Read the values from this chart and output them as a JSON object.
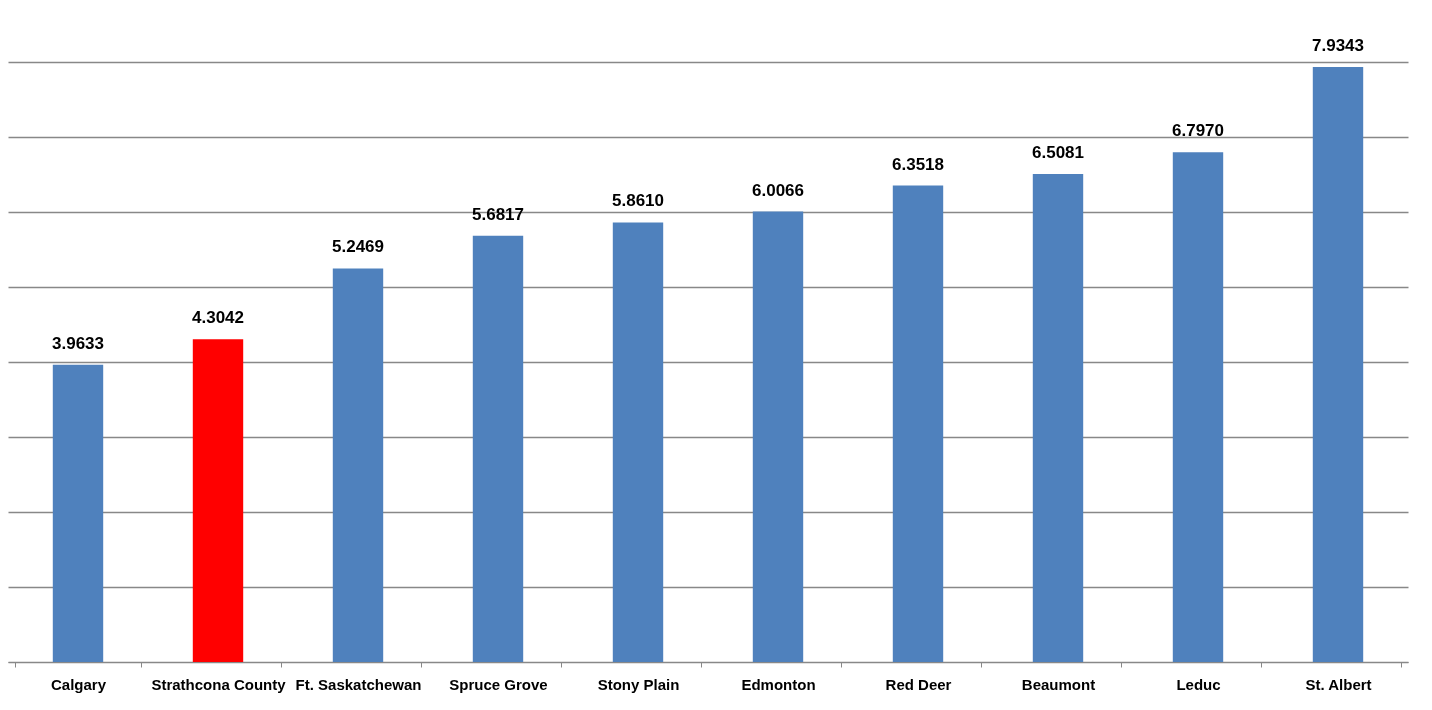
{
  "chart_data": {
    "type": "bar",
    "categories": [
      "Calgary",
      "Strathcona County",
      "Ft. Saskatchewan",
      "Spruce Grove",
      "Stony Plain",
      "Edmonton",
      "Red Deer",
      "Beaumont",
      "Leduc",
      "St. Albert"
    ],
    "values": [
      3.9633,
      4.3042,
      5.2469,
      5.6817,
      5.861,
      6.0066,
      6.3518,
      6.5081,
      6.797,
      7.9343
    ],
    "value_labels": [
      "3.9633",
      "4.3042",
      "5.2469",
      "5.6817",
      "5.8610",
      "6.0066",
      "6.3518",
      "6.5081",
      "6.7970",
      "7.9343"
    ],
    "colors": [
      "#4f81bd",
      "#ff0000",
      "#4f81bd",
      "#4f81bd",
      "#4f81bd",
      "#4f81bd",
      "#4f81bd",
      "#4f81bd",
      "#4f81bd",
      "#4f81bd"
    ],
    "ylim": [
      0,
      8
    ],
    "yticks": [
      {
        "value": 0,
        "label": null
      },
      {
        "value": 1,
        "label": null
      },
      {
        "value": 2,
        "label": null
      },
      {
        "value": 3,
        "label": null
      },
      {
        "value": 4,
        "label": null
      },
      {
        "value": 5,
        "label": null
      },
      {
        "value": 6,
        "label": null
      },
      {
        "value": 7,
        "label": null
      },
      {
        "value": 8,
        "label": null
      }
    ],
    "tick_labels": "x",
    "grid": "y"
  }
}
